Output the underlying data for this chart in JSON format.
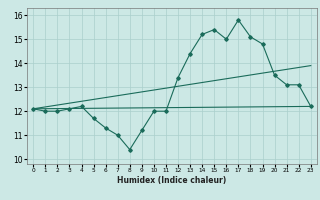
{
  "xlabel": "Humidex (Indice chaleur)",
  "ylabel": "",
  "background_color": "#cce8e5",
  "grid_color": "#aacfcc",
  "line_color": "#1a6b5a",
  "xlim": [
    -0.5,
    23.5
  ],
  "ylim": [
    9.8,
    16.3
  ],
  "xticks": [
    0,
    1,
    2,
    3,
    4,
    5,
    6,
    7,
    8,
    9,
    10,
    11,
    12,
    13,
    14,
    15,
    16,
    17,
    18,
    19,
    20,
    21,
    22,
    23
  ],
  "yticks": [
    10,
    11,
    12,
    13,
    14,
    15,
    16
  ],
  "main_x": [
    0,
    1,
    2,
    3,
    4,
    5,
    6,
    7,
    8,
    9,
    10,
    11,
    12,
    13,
    14,
    15,
    16,
    17,
    18,
    19,
    20,
    21,
    22,
    23
  ],
  "main_y": [
    12.1,
    12.0,
    12.0,
    12.1,
    12.2,
    11.7,
    11.3,
    11.0,
    10.4,
    11.2,
    12.0,
    12.0,
    13.4,
    14.4,
    15.2,
    15.4,
    15.0,
    15.8,
    15.1,
    14.8,
    13.5,
    13.1,
    13.1,
    12.2
  ],
  "line2_x": [
    0,
    23
  ],
  "line2_y": [
    12.1,
    12.2
  ],
  "line3_x": [
    0,
    23
  ],
  "line3_y": [
    12.1,
    13.9
  ]
}
